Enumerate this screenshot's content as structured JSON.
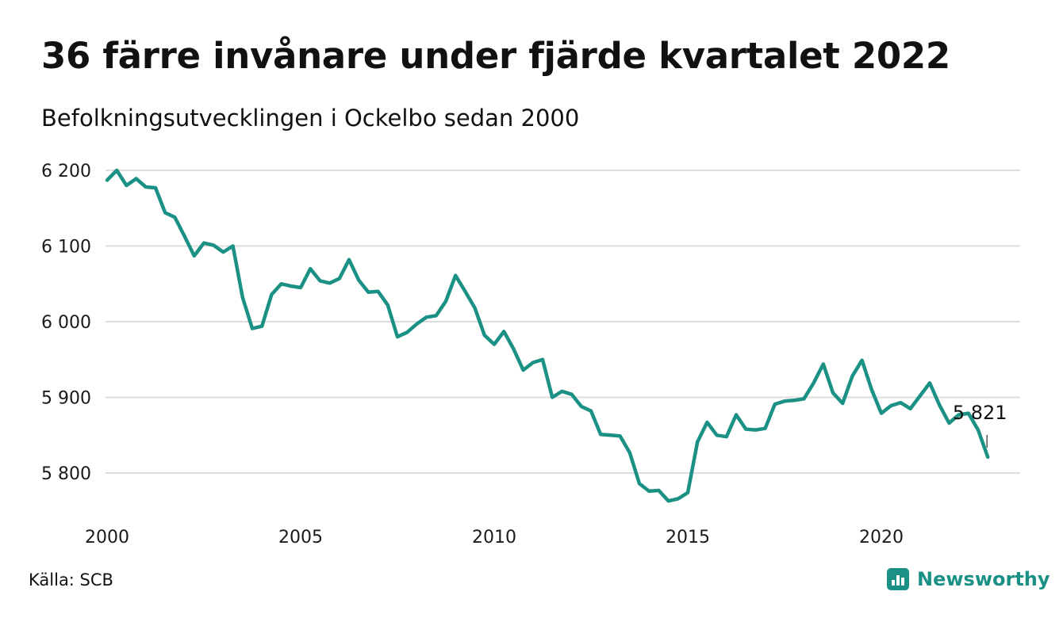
{
  "header": {
    "title": "36 färre invånare under fjärde kvartalet 2022",
    "subtitle": "Befolkningsutvecklingen i Ockelbo sedan 2000"
  },
  "footer": {
    "source": "Källa: SCB",
    "brand": "Newsworthy"
  },
  "colors": {
    "line": "#1a9184",
    "brand": "#1a9184",
    "grid": "#dddddd"
  },
  "chart_data": {
    "type": "line",
    "x_start_year": 2000,
    "x_interval": "quarter",
    "ylim": [
      5750,
      6210
    ],
    "xlim": [
      2000,
      2023.4
    ],
    "y_ticks": [
      6200,
      6100,
      6000,
      5900,
      5800
    ],
    "y_tick_labels": [
      "6 200",
      "6 100",
      "6 000",
      "5 900",
      "5 800"
    ],
    "x_ticks": [
      2000,
      2005,
      2010,
      2015,
      2020
    ],
    "x_tick_labels": [
      "2000",
      "2005",
      "2010",
      "2015",
      "2020"
    ],
    "grid": true,
    "legend": "none",
    "end_label": "5 821",
    "series": [
      {
        "values": [
          6187,
          6200,
          6180,
          6189,
          6178,
          6177,
          6144,
          6138,
          6113,
          6087,
          6104,
          6101,
          6092,
          6100,
          6032,
          5991,
          5994,
          6036,
          6050,
          6047,
          6045,
          6070,
          6054,
          6051,
          6057,
          6082,
          6055,
          6039,
          6040,
          6022,
          5980,
          5986,
          5997,
          6006,
          6008,
          6027,
          6061,
          6040,
          6018,
          5982,
          5970,
          5987,
          5964,
          5936,
          5946,
          5950,
          5900,
          5908,
          5904,
          5888,
          5882,
          5851,
          5850,
          5849,
          5827,
          5786,
          5776,
          5777,
          5763,
          5766,
          5774,
          5841,
          5867,
          5850,
          5848,
          5877,
          5858,
          5857,
          5859,
          5891,
          5895,
          5896,
          5898,
          5919,
          5944,
          5906,
          5892,
          5928,
          5949,
          5910,
          5879,
          5889,
          5893,
          5885,
          5902,
          5919,
          5890,
          5866,
          5877,
          5879,
          5857,
          5821
        ]
      }
    ]
  }
}
